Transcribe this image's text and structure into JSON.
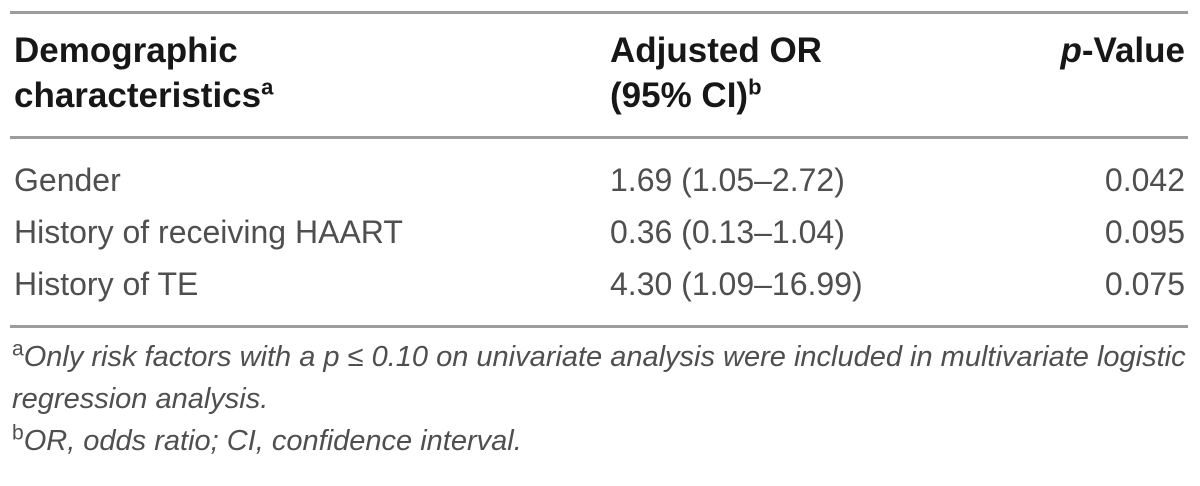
{
  "table": {
    "header": {
      "col1": {
        "line1": "Demographic",
        "line2": "characteristics",
        "sup": "a"
      },
      "col2": {
        "line1": "Adjusted OR",
        "line2": "(95% CI)",
        "sup": "b"
      },
      "col3": {
        "italic": "p",
        "rest": "-Value"
      }
    },
    "rows": [
      {
        "characteristic": "Gender",
        "adjusted_or": "1.69 (1.05–2.72)",
        "p_value": "0.042"
      },
      {
        "characteristic": "History of receiving HAART",
        "adjusted_or": "0.36 (0.13–1.04)",
        "p_value": "0.095"
      },
      {
        "characteristic": "History of TE",
        "adjusted_or": "4.30 (1.09–16.99)",
        "p_value": "0.075"
      }
    ],
    "footnotes": [
      {
        "marker": "a",
        "text": "Only risk factors with a p ≤ 0.10 on univariate analysis were included in multivariate logistic regression analysis."
      },
      {
        "marker": "b",
        "text": "OR, odds ratio; CI, confidence interval."
      }
    ],
    "colors": {
      "rule": "#9c9c9c",
      "header_text": "#171717",
      "body_text": "#4f4f4f",
      "background": "#ffffff"
    }
  }
}
